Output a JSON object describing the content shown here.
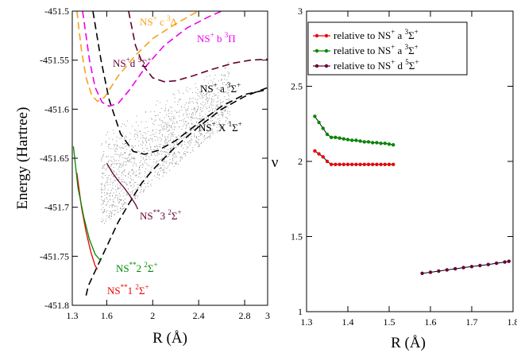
{
  "chart_data": [
    {
      "type": "line",
      "xlabel": "R (Å)",
      "ylabel": "Energy (Hartree)",
      "xlim": [
        1.3,
        3.0
      ],
      "ylim": [
        -451.8,
        -451.5
      ],
      "xticks": [
        "1.3",
        "1.6",
        "2",
        "2.4",
        "2.8",
        "3"
      ],
      "yticks": [
        "-451.8",
        "-451.75",
        "-451.7",
        "-451.65",
        "-451.6",
        "-451.55",
        "-451.5"
      ],
      "curves": [
        {
          "name": "NS+ X 1Σ+",
          "color": "#000000",
          "style": "dashed",
          "points": [
            [
              1.42,
              -451.79
            ],
            [
              1.44,
              -451.78
            ],
            [
              1.5,
              -451.765
            ],
            [
              1.6,
              -451.74
            ],
            [
              1.7,
              -451.715
            ],
            [
              1.8,
              -451.695
            ],
            [
              1.9,
              -451.676
            ],
            [
              2.0,
              -451.662
            ],
            [
              2.2,
              -451.638
            ],
            [
              2.4,
              -451.618
            ],
            [
              2.6,
              -451.6
            ],
            [
              2.8,
              -451.587
            ],
            [
              3.0,
              -451.578
            ]
          ]
        },
        {
          "name": "NS+ a 3Σ+",
          "color": "#000000",
          "style": "dashed",
          "points": [
            [
              1.48,
              -451.5
            ],
            [
              1.55,
              -451.55
            ],
            [
              1.62,
              -451.59
            ],
            [
              1.72,
              -451.625
            ],
            [
              1.83,
              -451.643
            ],
            [
              1.93,
              -451.646
            ],
            [
              2.05,
              -451.642
            ],
            [
              2.2,
              -451.632
            ],
            [
              2.4,
              -451.614
            ],
            [
              2.6,
              -451.597
            ],
            [
              2.8,
              -451.585
            ],
            [
              3.0,
              -451.58
            ]
          ]
        },
        {
          "name": "NS+ d 5Σ+",
          "color": "#660033",
          "style": "dashed",
          "points": [
            [
              1.79,
              -451.5
            ],
            [
              1.85,
              -451.535
            ],
            [
              1.92,
              -451.556
            ],
            [
              2.0,
              -451.568
            ],
            [
              2.1,
              -451.572
            ],
            [
              2.2,
              -451.571
            ],
            [
              2.35,
              -451.566
            ],
            [
              2.5,
              -451.56
            ],
            [
              2.7,
              -451.553
            ],
            [
              2.85,
              -451.55
            ],
            [
              3.0,
              -451.549
            ]
          ]
        },
        {
          "name": "NS+ c 3Δ",
          "color": "#f5a31a",
          "style": "dashed",
          "points": [
            [
              1.34,
              -451.5
            ],
            [
              1.38,
              -451.54
            ],
            [
              1.42,
              -451.568
            ],
            [
              1.47,
              -451.586
            ],
            [
              1.52,
              -451.592
            ],
            [
              1.58,
              -451.588
            ],
            [
              1.7,
              -451.566
            ],
            [
              1.85,
              -451.545
            ],
            [
              2.0,
              -451.528
            ],
            [
              2.2,
              -451.513
            ],
            [
              2.35,
              -451.503
            ],
            [
              2.4,
              -451.5
            ]
          ]
        },
        {
          "name": "NS+ b 3Π",
          "color": "#ee00ee",
          "style": "dashed",
          "points": [
            [
              1.39,
              -451.5
            ],
            [
              1.45,
              -451.55
            ],
            [
              1.5,
              -451.578
            ],
            [
              1.56,
              -451.593
            ],
            [
              1.62,
              -451.597
            ],
            [
              1.7,
              -451.594
            ],
            [
              1.8,
              -451.58
            ],
            [
              1.95,
              -451.555
            ],
            [
              2.1,
              -451.535
            ],
            [
              2.3,
              -451.517
            ],
            [
              2.5,
              -451.505
            ],
            [
              2.6,
              -451.5
            ]
          ]
        },
        {
          "name": "NS** 1 2Σ+",
          "color": "#ee0000",
          "style": "solid",
          "points": [
            [
              1.34,
              -451.665
            ],
            [
              1.38,
              -451.7
            ],
            [
              1.42,
              -451.725
            ],
            [
              1.46,
              -451.745
            ],
            [
              1.5,
              -451.76
            ],
            [
              1.52,
              -451.763
            ]
          ]
        },
        {
          "name": "NS** 2 2Σ+",
          "color": "#008800",
          "style": "solid",
          "points": [
            [
              1.31,
              -451.638
            ],
            [
              1.35,
              -451.68
            ],
            [
              1.4,
              -451.71
            ],
            [
              1.45,
              -451.733
            ],
            [
              1.5,
              -451.748
            ],
            [
              1.55,
              -451.755
            ]
          ]
        },
        {
          "name": "NS** 3 2Σ+",
          "color": "#660033",
          "style": "solid",
          "points": [
            [
              1.6,
              -451.655
            ],
            [
              1.65,
              -451.665
            ],
            [
              1.7,
              -451.673
            ],
            [
              1.75,
              -451.68
            ],
            [
              1.8,
              -451.688
            ],
            [
              1.85,
              -451.697
            ],
            [
              1.87,
              -451.702
            ]
          ]
        }
      ],
      "scatter_note": "grey Rydberg state points between the curves"
    },
    {
      "type": "line",
      "xlabel": "R (Å)",
      "ylabel": "ν",
      "xlim": [
        1.3,
        1.8
      ],
      "ylim": [
        1.0,
        3.0
      ],
      "xticks": [
        "1.3",
        "1.4",
        "1.5",
        "1.6",
        "1.7",
        "1.8"
      ],
      "yticks": [
        "1",
        "1.5",
        "2",
        "2.5",
        "3"
      ],
      "legend_position": "top-left",
      "series": [
        {
          "name": "relative to NS+ a 3Σ+",
          "color": "#ee0000",
          "x": [
            1.32,
            1.33,
            1.34,
            1.35,
            1.36,
            1.37,
            1.38,
            1.39,
            1.4,
            1.41,
            1.42,
            1.43,
            1.44,
            1.45,
            1.46,
            1.47,
            1.48,
            1.49,
            1.5,
            1.51
          ],
          "y": [
            2.07,
            2.05,
            2.03,
            2.0,
            1.98,
            1.98,
            1.98,
            1.98,
            1.98,
            1.98,
            1.98,
            1.98,
            1.98,
            1.98,
            1.98,
            1.98,
            1.98,
            1.98,
            1.98,
            1.98
          ]
        },
        {
          "name": "relative to NS+ a 3Σ+",
          "color": "#008800",
          "x": [
            1.32,
            1.33,
            1.34,
            1.35,
            1.36,
            1.37,
            1.38,
            1.39,
            1.4,
            1.41,
            1.42,
            1.43,
            1.44,
            1.45,
            1.46,
            1.47,
            1.48,
            1.49,
            1.5,
            1.51
          ],
          "y": [
            2.3,
            2.26,
            2.22,
            2.18,
            2.16,
            2.16,
            2.155,
            2.15,
            2.145,
            2.14,
            2.14,
            2.135,
            2.13,
            2.13,
            2.125,
            2.125,
            2.12,
            2.12,
            2.115,
            2.11
          ]
        },
        {
          "name": "relative to NS+ d 5Σ+",
          "color": "#660033",
          "x": [
            1.58,
            1.6,
            1.62,
            1.64,
            1.66,
            1.68,
            1.7,
            1.72,
            1.74,
            1.76,
            1.78,
            1.79
          ],
          "y": [
            1.255,
            1.262,
            1.27,
            1.278,
            1.285,
            1.293,
            1.3,
            1.307,
            1.314,
            1.322,
            1.33,
            1.335
          ]
        }
      ]
    }
  ],
  "labels": {
    "c3d": {
      "base": "NS",
      "s1": "+",
      "mid": " c ",
      "s2": "3",
      "tail": "Δ"
    },
    "b3p": {
      "base": "NS",
      "s1": "+",
      "mid": " b ",
      "s2": "3",
      "tail": "Π"
    },
    "d5s": {
      "base": "NS",
      "s1": "+",
      "mid": "d ",
      "s2": "5",
      "tail": "Σ",
      "s3": "+"
    },
    "a3s": {
      "base": "NS",
      "s1": "+",
      "mid": " a ",
      "s2": "3",
      "tail": "Σ",
      "s3": "+"
    },
    "x1s": {
      "base": "NS",
      "s1": "+",
      "mid": " X ",
      "s2": "1",
      "tail": "Σ",
      "s3": "+"
    },
    "r3": {
      "base": "NS",
      "s1": "**",
      "mid": "3 ",
      "s2": "2",
      "tail": "Σ",
      "s3": "+"
    },
    "r2": {
      "base": "NS",
      "s1": "**",
      "mid": "2 ",
      "s2": "2",
      "tail": "Σ",
      "s3": "+"
    },
    "r1": {
      "base": "NS",
      "s1": "**",
      "mid": "1 ",
      "s2": "2",
      "tail": "Σ",
      "s3": "+"
    }
  },
  "legend": [
    {
      "text": "relative to NS",
      "s1": "+",
      "mid": " a ",
      "s2": "3",
      "tail": "Σ",
      "s3": "+",
      "color": "#ee0000"
    },
    {
      "text": "relative to NS",
      "s1": "+",
      "mid": " a ",
      "s2": "3",
      "tail": "Σ",
      "s3": "+",
      "color": "#008800"
    },
    {
      "text": "relative to NS",
      "s1": "+",
      "mid": " d ",
      "s2": "5",
      "tail": "Σ",
      "s3": "+",
      "color": "#660033"
    }
  ]
}
